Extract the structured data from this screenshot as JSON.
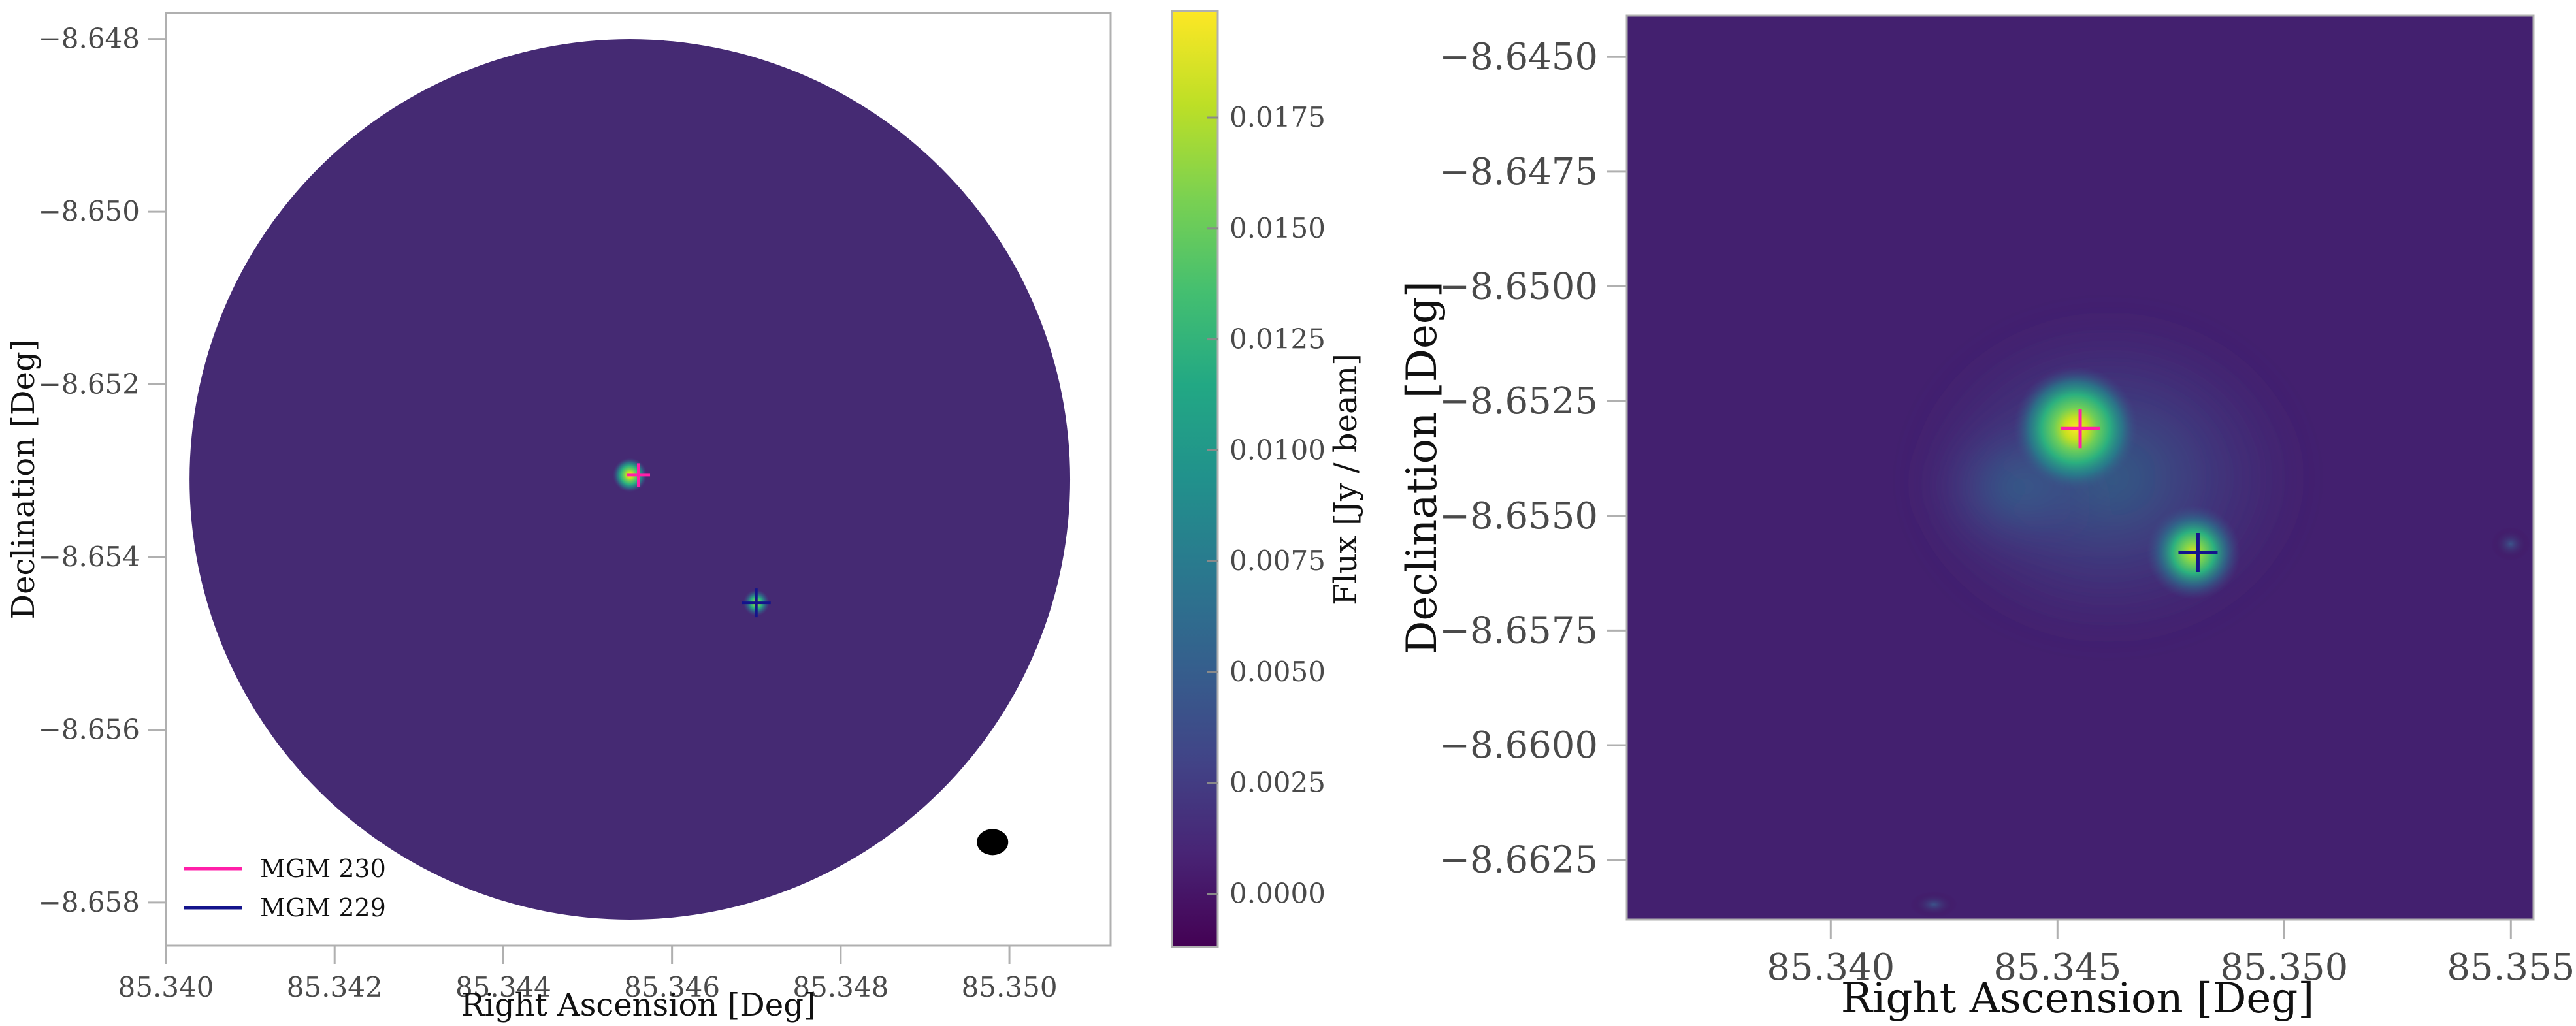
{
  "chart_data": [
    {
      "type": "heatmap",
      "xlabel": "Right Ascension [Deg]",
      "ylabel": "Declination [Deg]",
      "xlim": [
        85.34,
        85.3512
      ],
      "ylim": [
        -8.6585,
        -8.6477
      ],
      "xticks": [
        85.34,
        85.342,
        85.344,
        85.346,
        85.348,
        85.35
      ],
      "xtick_labels": [
        "85.340",
        "85.342",
        "85.344",
        "85.346",
        "85.348",
        "85.350"
      ],
      "yticks": [
        -8.648,
        -8.65,
        -8.652,
        -8.654,
        -8.656,
        -8.658
      ],
      "ytick_labels": [
        "−8.648",
        "−8.650",
        "−8.652",
        "−8.654",
        "−8.656",
        "−8.658"
      ],
      "field_of_view": {
        "center": [
          85.3455,
          -8.6531
        ],
        "radius_deg": 0.00522
      },
      "sources": [
        {
          "ra": 85.3455,
          "dec": -8.65305,
          "peak": 0.0199
        },
        {
          "ra": 85.347,
          "dec": -8.65453,
          "peak": 0.0085
        }
      ],
      "markers": [
        {
          "name": "MGM 230",
          "ra": 85.3456,
          "dec": -8.65305,
          "color": "#ff1fa8"
        },
        {
          "name": "MGM 229",
          "ra": 85.347,
          "dec": -8.65453,
          "color": "#14148c"
        }
      ],
      "beam": {
        "ra": 85.3498,
        "dec": -8.6573
      },
      "legend": [
        "MGM 230",
        "MGM 229"
      ],
      "legend_position": "lower-left",
      "colormap": "viridis",
      "colorbar": {
        "label": "Flux [Jy / beam]",
        "range": [
          -0.0012,
          0.0199
        ],
        "ticks": [
          0.0,
          0.0025,
          0.005,
          0.0075,
          0.01,
          0.0125,
          0.015,
          0.0175
        ],
        "tick_labels": [
          "0.0000",
          "0.0025",
          "0.0050",
          "0.0075",
          "0.0100",
          "0.0125",
          "0.0150",
          "0.0175"
        ]
      }
    },
    {
      "type": "heatmap",
      "xlabel": "Right Ascension [Deg]",
      "ylabel": "Declination [Deg]",
      "xlim": [
        85.3355,
        85.3555
      ],
      "ylim": [
        -8.6638,
        -8.6441
      ],
      "xticks": [
        85.34,
        85.345,
        85.35,
        85.355
      ],
      "xtick_labels": [
        "85.340",
        "85.345",
        "85.350",
        "85.355"
      ],
      "yticks": [
        -8.645,
        -8.6475,
        -8.65,
        -8.6525,
        -8.655,
        -8.6575,
        -8.66,
        -8.6625
      ],
      "ytick_labels": [
        "−8.6450",
        "−8.6475",
        "−8.6500",
        "−8.6525",
        "−8.6550",
        "−8.6575",
        "−8.6600",
        "−8.6625"
      ],
      "sources": [
        {
          "ra": 85.3454,
          "dec": -8.6531,
          "peak": 1.0
        },
        {
          "ra": 85.348,
          "dec": -8.6558,
          "peak": 0.85
        }
      ],
      "markers": [
        {
          "name": "MGM 230",
          "ra": 85.3455,
          "dec": -8.6531,
          "color": "#ff1fa8"
        },
        {
          "name": "MGM 229",
          "ra": 85.3481,
          "dec": -8.6558,
          "color": "#14148c"
        }
      ],
      "colormap": "viridis",
      "legend": []
    }
  ]
}
